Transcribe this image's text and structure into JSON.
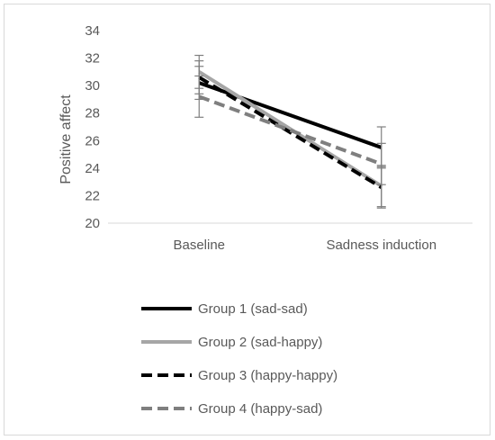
{
  "chart_data": {
    "type": "line",
    "title": "",
    "xlabel": "",
    "ylabel": "Positive affect",
    "ylim": [
      20,
      34
    ],
    "yticks": [
      20,
      22,
      24,
      26,
      28,
      30,
      32,
      34
    ],
    "categories": [
      "Baseline",
      "Sadness induction"
    ],
    "grid": false,
    "legend_position": "bottom",
    "series": [
      {
        "name": "Group 1 (sad-sad)",
        "values": [
          30.2,
          25.5
        ],
        "error": [
          1.2,
          1.5
        ],
        "color": "#000000",
        "dash": "solid"
      },
      {
        "name": "Group 2 (sad-happy)",
        "values": [
          31.0,
          22.7
        ],
        "error": [
          1.2,
          1.5
        ],
        "color": "#a6a6a6",
        "dash": "solid"
      },
      {
        "name": "Group 3 (happy-happy)",
        "values": [
          30.6,
          22.6
        ],
        "error": [
          1.2,
          1.5
        ],
        "color": "#000000",
        "dash": "dashed"
      },
      {
        "name": "Group 4 (happy-sad)",
        "values": [
          29.2,
          24.3
        ],
        "error": [
          1.5,
          1.5
        ],
        "color": "#7f7f7f",
        "dash": "dashed"
      }
    ]
  }
}
